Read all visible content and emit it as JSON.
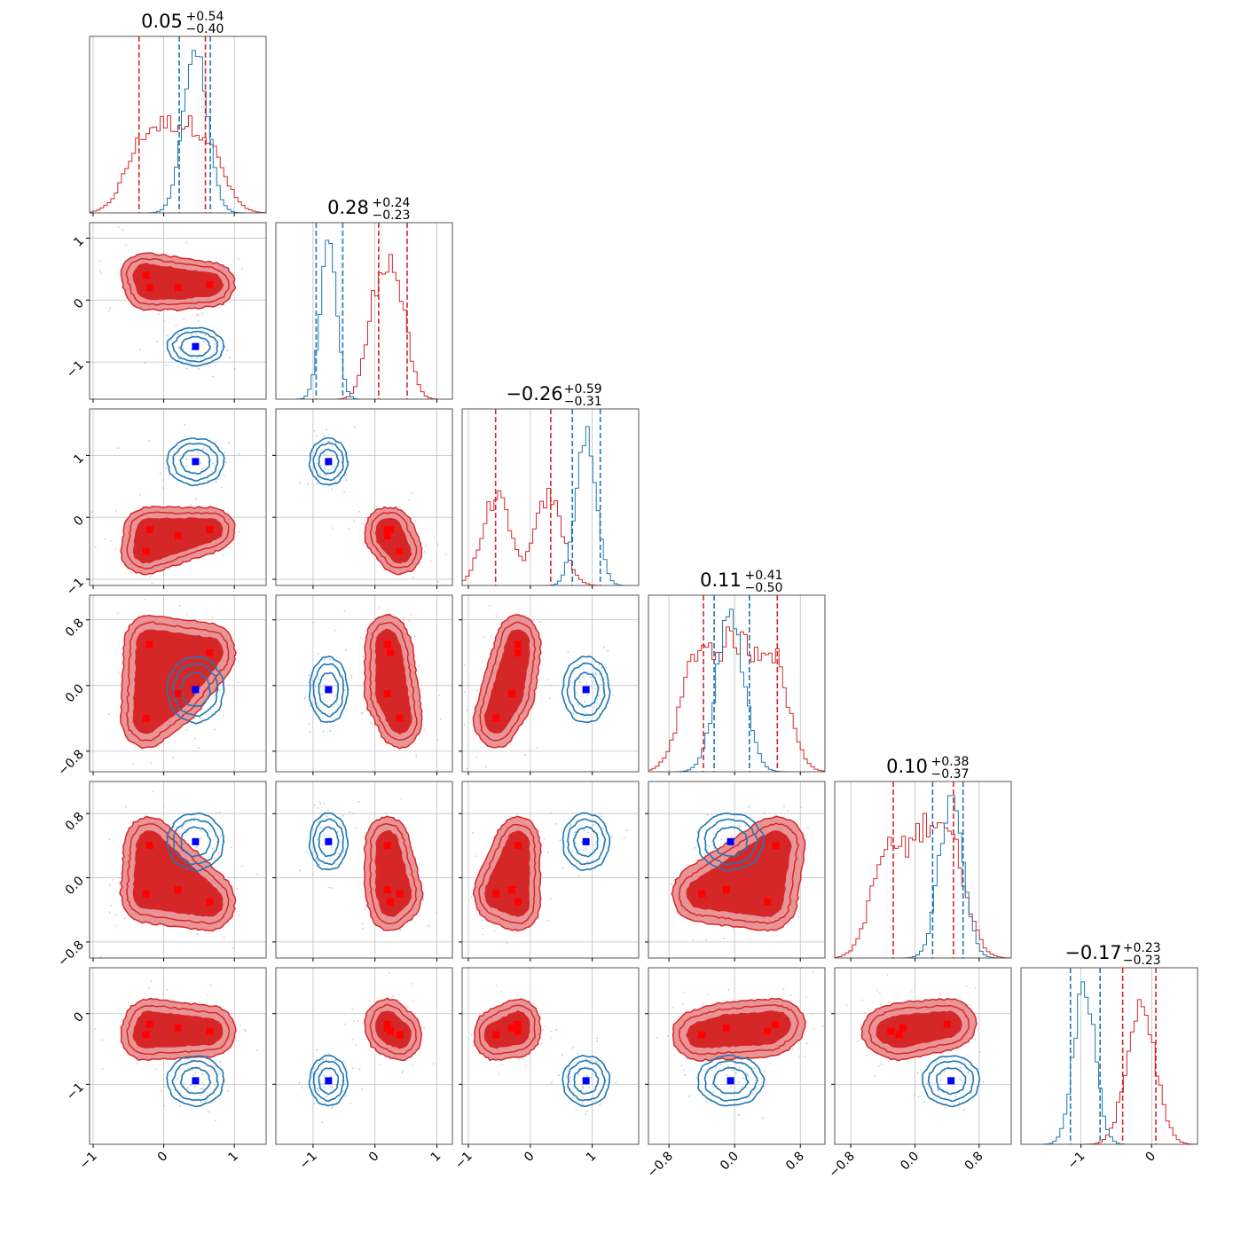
{
  "colors": {
    "red": "#d62728",
    "red_light": "#e99597",
    "red_mid": "#e05a5b",
    "blue": "#1f77b4",
    "blue_dot": "#a6cbe3",
    "red_dot": "#f4b8c2",
    "blue_marker": "#0000ff",
    "red_marker": "#ff0000"
  },
  "chart_data": {
    "type": "corner",
    "n_params": 6,
    "grid": true,
    "params": [
      {
        "range": [
          -1.05,
          1.45
        ],
        "ticks": [
          -1,
          0,
          1
        ],
        "tick_labels": [
          "−1",
          "0",
          "1"
        ],
        "title_value": "0.05",
        "title_plus": "+0.54",
        "title_minus": "−0.40"
      },
      {
        "range": [
          -1.6,
          1.25
        ],
        "ticks": [
          -1,
          0,
          1
        ],
        "tick_labels": [
          "−1",
          "0",
          "1"
        ],
        "title_value": "0.28",
        "title_plus": "+0.24",
        "title_minus": "−0.23"
      },
      {
        "range": [
          -1.1,
          1.75
        ],
        "ticks": [
          -1,
          0,
          1
        ],
        "tick_labels": [
          "−1",
          "0",
          "1"
        ],
        "title_value": "−0.26",
        "title_plus": "+0.59",
        "title_minus": "−0.31"
      },
      {
        "range": [
          -1.05,
          1.1
        ],
        "ticks": [
          -0.8,
          0.0,
          0.8
        ],
        "tick_labels": [
          "−0.8",
          "0.0",
          "0.8"
        ],
        "title_value": "0.11",
        "title_plus": "+0.41",
        "title_minus": "−0.50"
      },
      {
        "range": [
          -1.0,
          1.2
        ],
        "ticks": [
          -0.8,
          0.0,
          0.8
        ],
        "tick_labels": [
          "−0.8",
          "0.0",
          "0.8"
        ],
        "title_value": "0.10",
        "title_plus": "+0.38",
        "title_minus": "−0.37"
      },
      {
        "range": [
          -1.85,
          0.65
        ],
        "ticks": [
          -1,
          0
        ],
        "tick_labels": [
          "−1",
          "0"
        ],
        "title_value": "−0.17",
        "title_plus": "+0.23",
        "title_minus": "−0.23"
      }
    ],
    "series": [
      {
        "color": "red",
        "truths": [
          [
            -0.25,
            0.4,
            -0.55,
            -0.4,
            -0.2,
            -0.3
          ],
          [
            -0.2,
            0.2,
            -0.2,
            0.5,
            0.4,
            -0.15
          ],
          [
            0.2,
            0.2,
            -0.3,
            -0.1,
            -0.15,
            -0.2
          ],
          [
            0.65,
            0.25,
            -0.2,
            0.4,
            -0.3,
            -0.25
          ]
        ],
        "hist_centers": [
          [
            -0.3,
            0.15,
            0.6
          ],
          [
            0.35,
            0.05
          ],
          [
            -0.55,
            0.3
          ],
          [
            -0.45,
            0.0,
            0.45
          ],
          [
            -0.35,
            0.1,
            0.45
          ],
          [
            -0.15
          ]
        ],
        "hist_widths": [
          0.25,
          0.18,
          0.22,
          0.2,
          0.2,
          0.2
        ],
        "quantiles": [
          [
            -0.35,
            0.59
          ],
          [
            0.06,
            0.52
          ],
          [
            -0.56,
            0.33
          ],
          [
            -0.38,
            0.52
          ],
          [
            -0.27,
            0.48
          ],
          [
            -0.41,
            0.06
          ]
        ]
      },
      {
        "color": "blue",
        "truth": [
          0.45,
          -0.75,
          0.9,
          -0.05,
          0.45,
          -0.95
        ],
        "sigma": [
          0.17,
          0.13,
          0.16,
          0.17,
          0.15,
          0.15
        ],
        "quantiles": [
          [
            0.22,
            0.66
          ],
          [
            -0.95,
            -0.52
          ],
          [
            0.68,
            1.13
          ],
          [
            -0.25,
            0.18
          ],
          [
            0.22,
            0.6
          ],
          [
            -1.15,
            -0.73
          ]
        ]
      }
    ]
  }
}
